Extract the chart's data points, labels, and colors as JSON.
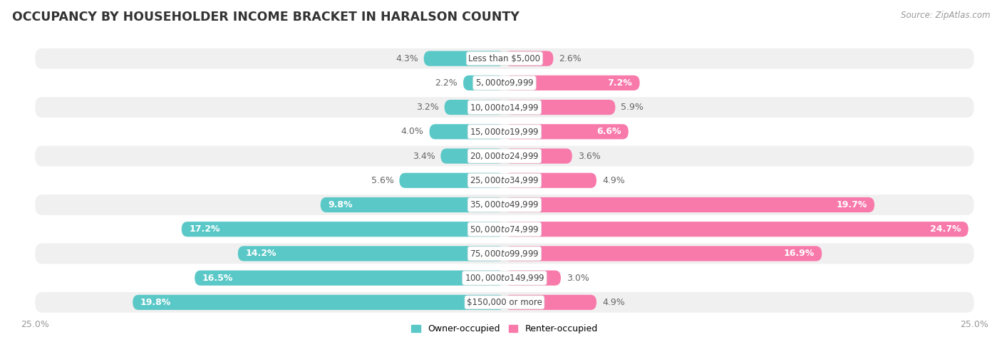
{
  "title": "OCCUPANCY BY HOUSEHOLDER INCOME BRACKET IN HARALSON COUNTY",
  "source": "Source: ZipAtlas.com",
  "categories": [
    "Less than $5,000",
    "$5,000 to $9,999",
    "$10,000 to $14,999",
    "$15,000 to $19,999",
    "$20,000 to $24,999",
    "$25,000 to $34,999",
    "$35,000 to $49,999",
    "$50,000 to $74,999",
    "$75,000 to $99,999",
    "$100,000 to $149,999",
    "$150,000 or more"
  ],
  "owner_values": [
    4.3,
    2.2,
    3.2,
    4.0,
    3.4,
    5.6,
    9.8,
    17.2,
    14.2,
    16.5,
    19.8
  ],
  "renter_values": [
    2.6,
    7.2,
    5.9,
    6.6,
    3.6,
    4.9,
    19.7,
    24.7,
    16.9,
    3.0,
    4.9
  ],
  "owner_color": "#5bc8c8",
  "renter_color": "#f87aab",
  "axis_max": 25.0,
  "bg_color": "#ffffff",
  "row_light": "#f0f0f0",
  "row_dark": "#e8e8e8",
  "bar_height": 0.62,
  "title_fontsize": 12.5,
  "cat_fontsize": 8.5,
  "val_fontsize": 9.0,
  "axis_label_fontsize": 9,
  "legend_fontsize": 9,
  "source_fontsize": 8.5,
  "inside_label_threshold": 6.0
}
